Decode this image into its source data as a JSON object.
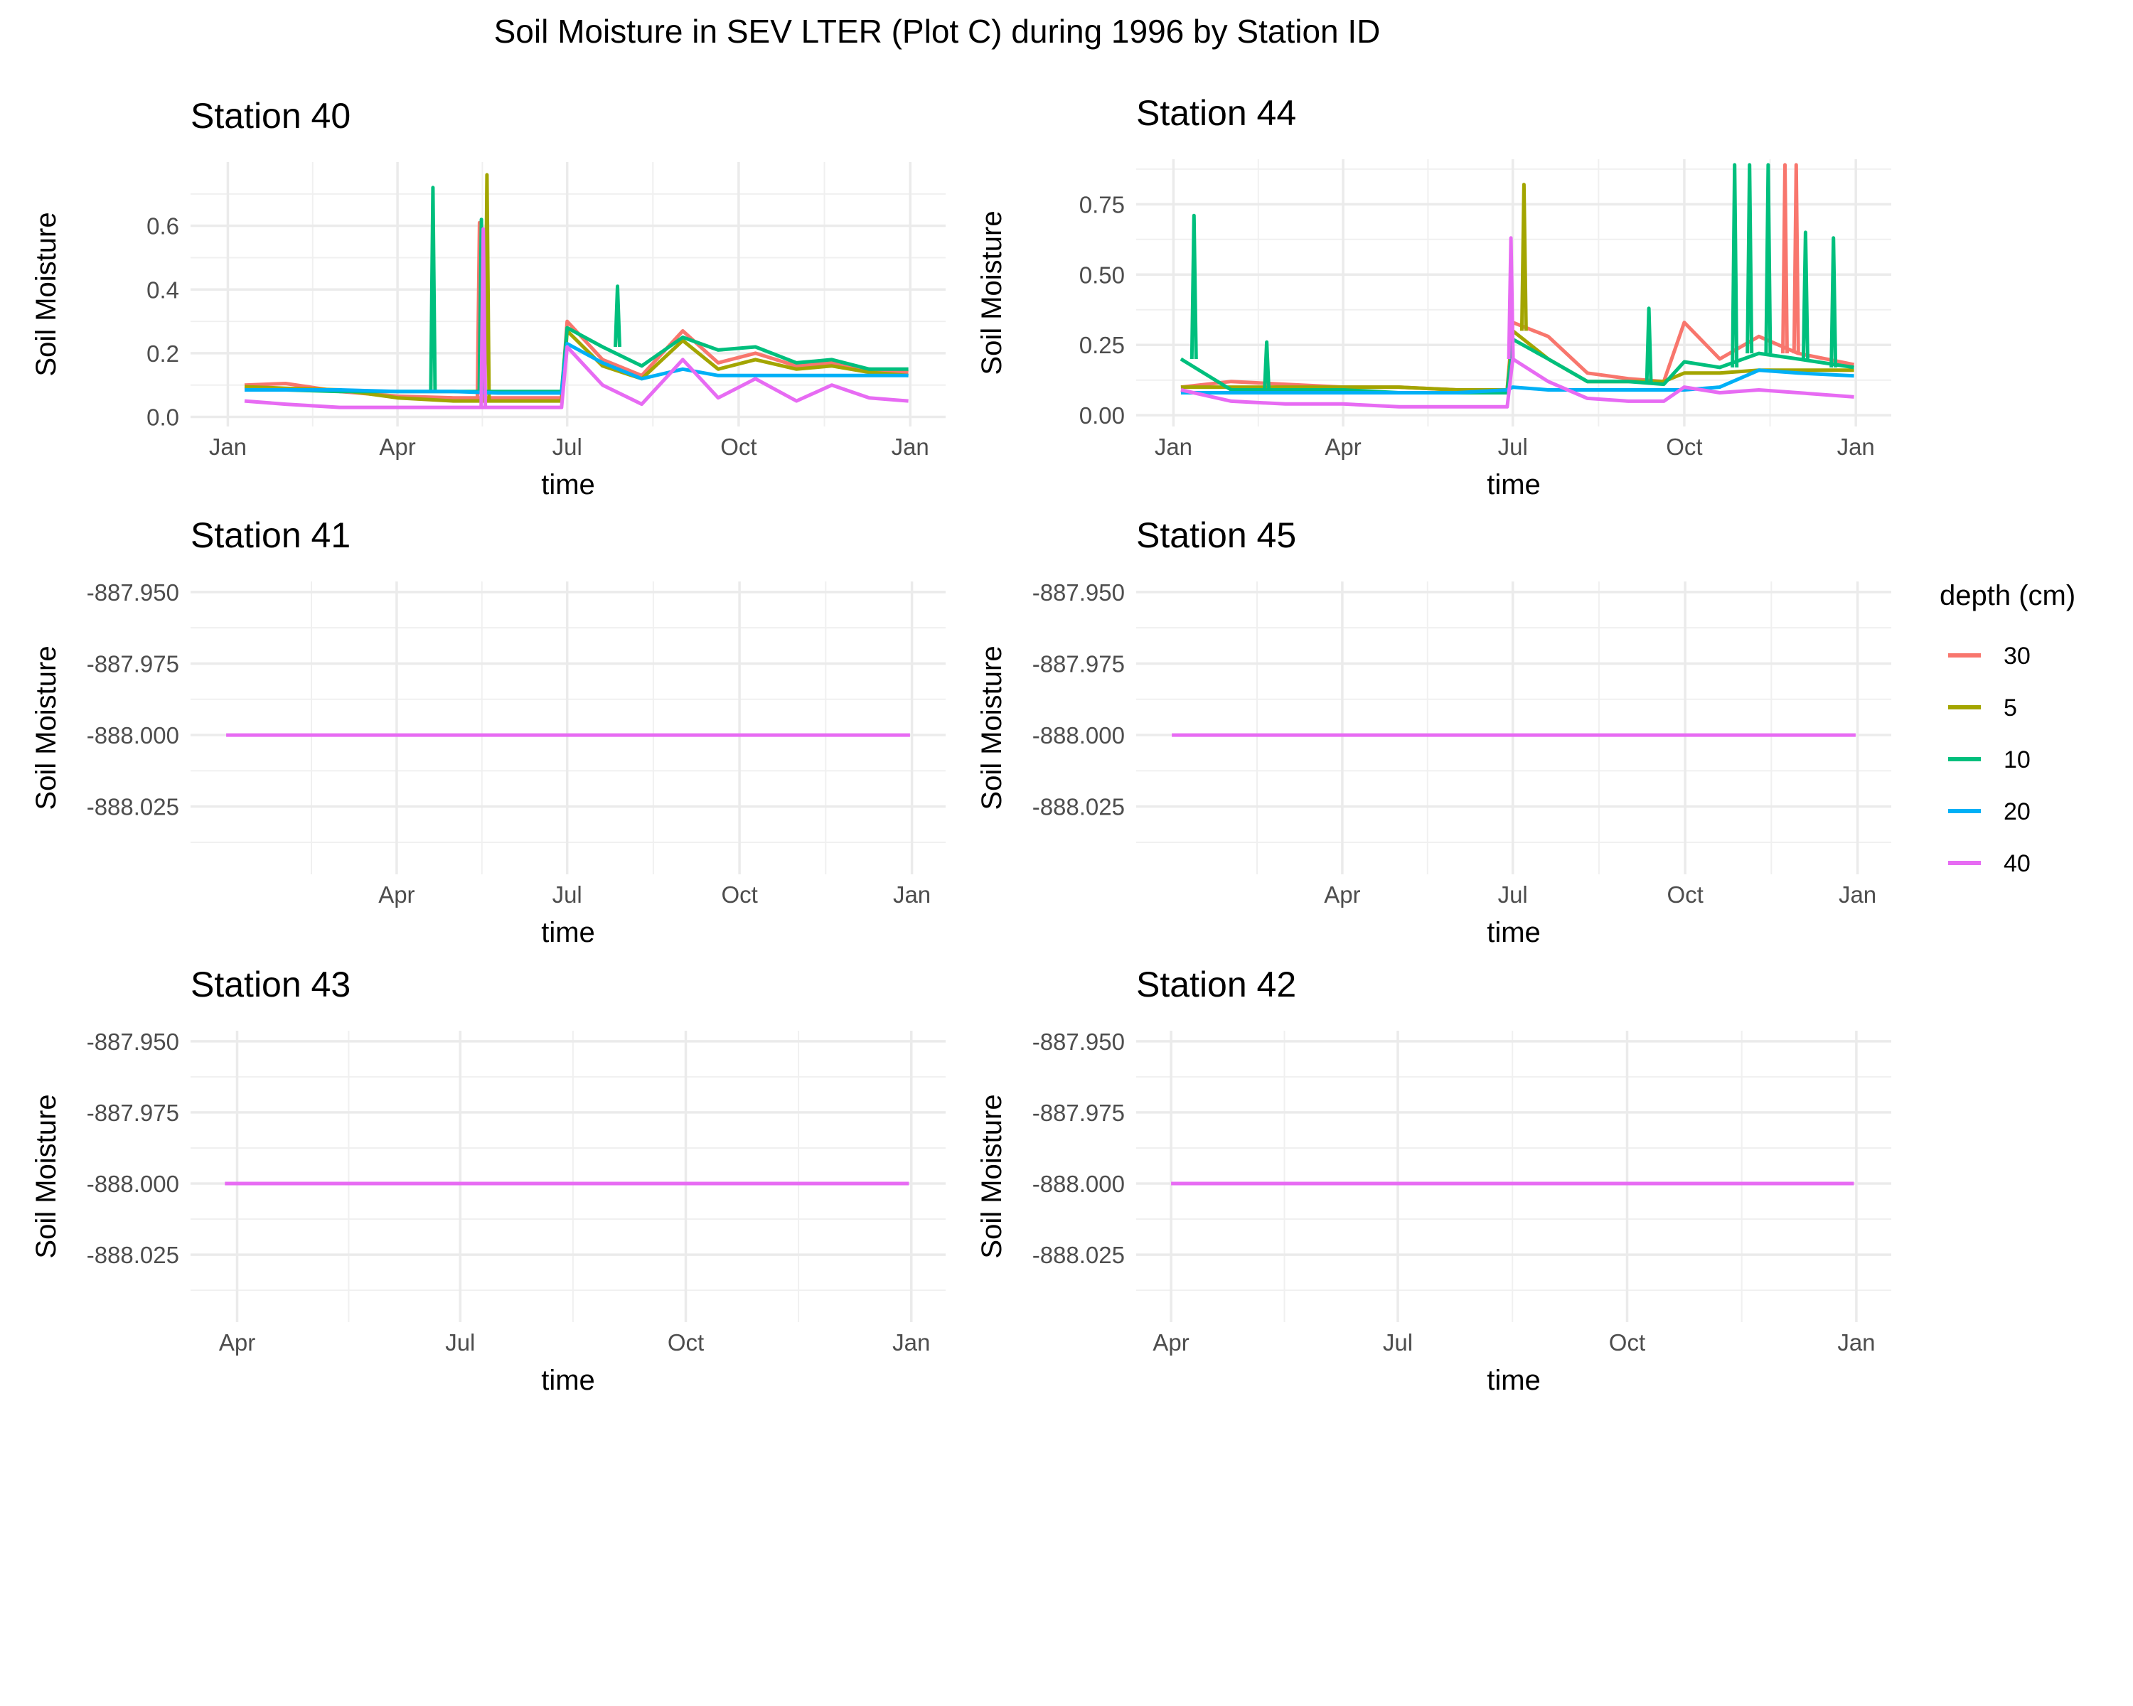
{
  "title": "Soil Moisture in SEV LTER (Plot C) during 1996 by Station ID",
  "legend": {
    "title": "depth (cm)",
    "items": [
      {
        "label": "30",
        "color": "#F8766D"
      },
      {
        "label": "5",
        "color": "#A3A500"
      },
      {
        "label": "10",
        "color": "#00BF7D"
      },
      {
        "label": "20",
        "color": "#00B0F6"
      },
      {
        "label": "40",
        "color": "#E76BF3"
      }
    ]
  },
  "chart_data": [
    {
      "type": "line",
      "title": "Station  40",
      "xlabel": "time",
      "ylabel": "Soil Moisture",
      "x_tick_labels": [
        "Jan",
        "Apr",
        "Jul",
        "Oct",
        "Jan"
      ],
      "x_ticks": [
        "1996-01-01",
        "1996-04-01",
        "1996-07-01",
        "1996-10-01",
        "1997-01-01"
      ],
      "xlim": [
        "1995-12-12",
        "1997-01-20"
      ],
      "y_ticks": [
        0.0,
        0.2,
        0.4,
        0.6
      ],
      "y_tick_labels": [
        "0.0",
        "0.2",
        "0.4",
        "0.6"
      ],
      "ylim": [
        -0.03,
        0.8
      ],
      "x": [
        "1996-01-10",
        "1996-02-01",
        "1996-03-01",
        "1996-04-01",
        "1996-05-01",
        "1996-05-25",
        "1996-06-10",
        "1996-06-28",
        "1996-07-01",
        "1996-07-20",
        "1996-08-10",
        "1996-09-01",
        "1996-09-20",
        "1996-10-10",
        "1996-11-01",
        "1996-11-20",
        "1996-12-10",
        "1996-12-31"
      ],
      "series": [
        {
          "name": "30",
          "values": [
            0.1,
            0.105,
            0.08,
            0.065,
            0.06,
            0.06,
            0.06,
            0.06,
            0.3,
            0.18,
            0.13,
            0.27,
            0.17,
            0.2,
            0.16,
            0.17,
            0.15,
            0.14
          ],
          "peaks": [
            {
              "x": "1996-05-15",
              "y": 0.61
            }
          ]
        },
        {
          "name": "5",
          "values": [
            0.095,
            0.09,
            0.085,
            0.06,
            0.05,
            0.05,
            0.05,
            0.05,
            0.27,
            0.16,
            0.12,
            0.24,
            0.15,
            0.18,
            0.15,
            0.16,
            0.14,
            0.13
          ],
          "peaks": [
            {
              "x": "1996-05-19",
              "y": 0.76
            }
          ]
        },
        {
          "name": "10",
          "values": [
            0.085,
            0.085,
            0.08,
            0.08,
            0.08,
            0.08,
            0.08,
            0.08,
            0.28,
            0.22,
            0.16,
            0.25,
            0.21,
            0.22,
            0.17,
            0.18,
            0.15,
            0.15
          ],
          "peaks": [
            {
              "x": "1996-04-20",
              "y": 0.72
            },
            {
              "x": "1996-05-16",
              "y": 0.62
            },
            {
              "x": "1996-07-28",
              "y": 0.41
            }
          ]
        },
        {
          "name": "20",
          "values": [
            0.085,
            0.085,
            0.085,
            0.08,
            0.08,
            0.075,
            0.075,
            0.075,
            0.23,
            0.17,
            0.12,
            0.15,
            0.13,
            0.13,
            0.13,
            0.13,
            0.13,
            0.13
          ],
          "peaks": []
        },
        {
          "name": "40",
          "values": [
            0.05,
            0.04,
            0.03,
            0.03,
            0.03,
            0.03,
            0.03,
            0.03,
            0.22,
            0.1,
            0.04,
            0.18,
            0.06,
            0.12,
            0.05,
            0.1,
            0.06,
            0.05
          ],
          "peaks": [
            {
              "x": "1996-05-17",
              "y": 0.59
            }
          ]
        }
      ]
    },
    {
      "type": "line",
      "title": "Station  44",
      "xlabel": "time",
      "ylabel": "Soil Moisture",
      "x_tick_labels": [
        "Jan",
        "Apr",
        "Jul",
        "Oct",
        "Jan"
      ],
      "x_ticks": [
        "1996-01-01",
        "1996-04-01",
        "1996-07-01",
        "1996-10-01",
        "1997-01-01"
      ],
      "xlim": [
        "1995-12-12",
        "1997-01-20"
      ],
      "y_ticks": [
        0.0,
        0.25,
        0.5,
        0.75
      ],
      "y_tick_labels": [
        "0.00",
        "0.25",
        "0.50",
        "0.75"
      ],
      "ylim": [
        -0.04,
        0.91
      ],
      "x": [
        "1996-01-05",
        "1996-02-01",
        "1996-03-01",
        "1996-04-01",
        "1996-05-01",
        "1996-06-01",
        "1996-06-28",
        "1996-07-01",
        "1996-07-20",
        "1996-08-10",
        "1996-09-01",
        "1996-09-20",
        "1996-10-01",
        "1996-10-20",
        "1996-11-10",
        "1996-12-01",
        "1996-12-31"
      ],
      "series": [
        {
          "name": "30",
          "values": [
            0.1,
            0.12,
            0.11,
            0.1,
            0.1,
            0.09,
            0.09,
            0.33,
            0.28,
            0.15,
            0.13,
            0.12,
            0.33,
            0.2,
            0.28,
            0.22,
            0.18
          ],
          "peaks": [
            {
              "x": "1996-11-24",
              "y": 0.89
            },
            {
              "x": "1996-11-30",
              "y": 0.89
            }
          ]
        },
        {
          "name": "5",
          "values": [
            0.1,
            0.1,
            0.1,
            0.1,
            0.1,
            0.09,
            0.09,
            0.3,
            0.2,
            0.12,
            0.12,
            0.12,
            0.15,
            0.15,
            0.16,
            0.16,
            0.16
          ],
          "peaks": [
            {
              "x": "1996-07-07",
              "y": 0.82
            }
          ]
        },
        {
          "name": "10",
          "values": [
            0.2,
            0.09,
            0.09,
            0.09,
            0.08,
            0.08,
            0.08,
            0.27,
            0.2,
            0.12,
            0.12,
            0.11,
            0.19,
            0.17,
            0.22,
            0.2,
            0.17
          ],
          "peaks": [
            {
              "x": "1996-01-12",
              "y": 0.71
            },
            {
              "x": "1996-02-20",
              "y": 0.26
            },
            {
              "x": "1996-09-12",
              "y": 0.38
            },
            {
              "x": "1996-10-28",
              "y": 0.89
            },
            {
              "x": "1996-11-05",
              "y": 0.89
            },
            {
              "x": "1996-11-15",
              "y": 0.89
            },
            {
              "x": "1996-12-05",
              "y": 0.65
            },
            {
              "x": "1996-12-20",
              "y": 0.63
            }
          ]
        },
        {
          "name": "20",
          "values": [
            0.08,
            0.08,
            0.08,
            0.08,
            0.08,
            0.08,
            0.09,
            0.1,
            0.09,
            0.09,
            0.09,
            0.09,
            0.09,
            0.1,
            0.16,
            0.15,
            0.14
          ],
          "peaks": []
        },
        {
          "name": "40",
          "values": [
            0.09,
            0.05,
            0.04,
            0.04,
            0.03,
            0.03,
            0.03,
            0.2,
            0.12,
            0.06,
            0.05,
            0.05,
            0.1,
            0.08,
            0.09,
            0.08,
            0.065
          ],
          "peaks": [
            {
              "x": "1996-06-30",
              "y": 0.63
            }
          ]
        }
      ]
    },
    {
      "type": "line",
      "title": "Station  41",
      "xlabel": "time",
      "ylabel": "Soil Moisture",
      "x_tick_labels": [
        "Apr",
        "Jul",
        "Oct",
        "Jan"
      ],
      "x_ticks": [
        "1996-04-01",
        "1996-07-01",
        "1996-10-01",
        "1997-01-01"
      ],
      "xlim": [
        "1995-12-13",
        "1997-01-19"
      ],
      "y_ticks": [
        -887.95,
        -887.975,
        -888.0,
        -888.025
      ],
      "y_tick_labels": [
        "-887.950",
        "-887.975",
        "-888.000",
        "-888.025"
      ],
      "ylim": [
        -888.0487,
        -887.9463
      ],
      "x": [
        "1996-01-01",
        "1996-12-31"
      ],
      "series": [
        {
          "name": "40",
          "values": [
            -888.0,
            -888.0
          ],
          "peaks": []
        }
      ]
    },
    {
      "type": "line",
      "title": "Station  45",
      "xlabel": "time",
      "ylabel": "Soil Moisture",
      "x_tick_labels": [
        "Apr",
        "Jul",
        "Oct",
        "Jan"
      ],
      "x_ticks": [
        "1996-04-01",
        "1996-07-01",
        "1996-10-01",
        "1997-01-01"
      ],
      "xlim": [
        "1995-12-13",
        "1997-01-19"
      ],
      "y_ticks": [
        -887.95,
        -887.975,
        -888.0,
        -888.025
      ],
      "y_tick_labels": [
        "-887.950",
        "-887.975",
        "-888.000",
        "-888.025"
      ],
      "ylim": [
        -888.0487,
        -887.9463
      ],
      "x": [
        "1996-01-01",
        "1996-12-31"
      ],
      "series": [
        {
          "name": "40",
          "values": [
            -888.0,
            -888.0
          ],
          "peaks": []
        }
      ]
    },
    {
      "type": "line",
      "title": "Station  43",
      "xlabel": "time",
      "ylabel": "Soil Moisture",
      "x_tick_labels": [
        "Apr",
        "Jul",
        "Oct",
        "Jan"
      ],
      "x_ticks": [
        "1996-04-01",
        "1996-07-01",
        "1996-10-01",
        "1997-01-01"
      ],
      "xlim": [
        "1996-03-13",
        "1997-01-15"
      ],
      "y_ticks": [
        -887.95,
        -887.975,
        -888.0,
        -888.025
      ],
      "y_tick_labels": [
        "-887.950",
        "-887.975",
        "-888.000",
        "-888.025"
      ],
      "ylim": [
        -888.0487,
        -887.9463
      ],
      "x": [
        "1996-03-27",
        "1996-12-31"
      ],
      "series": [
        {
          "name": "40",
          "values": [
            -888.0,
            -888.0
          ],
          "peaks": []
        }
      ]
    },
    {
      "type": "line",
      "title": "Station  42",
      "xlabel": "time",
      "ylabel": "Soil Moisture",
      "x_tick_labels": [
        "Apr",
        "Jul",
        "Oct",
        "Jan"
      ],
      "x_ticks": [
        "1996-04-01",
        "1996-07-01",
        "1996-10-01",
        "1997-01-01"
      ],
      "xlim": [
        "1996-03-18",
        "1997-01-15"
      ],
      "y_ticks": [
        -887.95,
        -887.975,
        -888.0,
        -888.025
      ],
      "y_tick_labels": [
        "-887.950",
        "-887.975",
        "-888.000",
        "-888.025"
      ],
      "ylim": [
        -888.0487,
        -887.9463
      ],
      "x": [
        "1996-04-01",
        "1996-12-31"
      ],
      "series": [
        {
          "name": "40",
          "values": [
            -888.0,
            -888.0
          ],
          "peaks": []
        }
      ]
    }
  ]
}
